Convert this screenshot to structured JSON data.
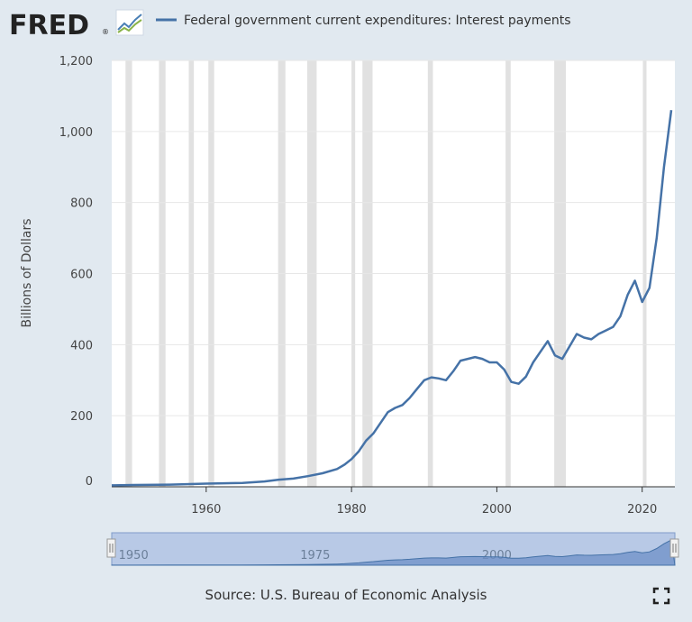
{
  "logo": {
    "text": "FRED",
    "registered": "®"
  },
  "source": "Source: U.S. Bureau of Economic Analysis",
  "icons": {
    "fullscreen": "fullscreen-icon",
    "logo_graph": "trend-graph-icon"
  },
  "colors": {
    "background": "#e1e9f0",
    "plot_bg": "#ffffff",
    "line": "#4572a7",
    "recession": "#e1e1e1",
    "navigator": "#b8c9e6",
    "navigator_fill": "#6d8fc7"
  },
  "chart_data": {
    "type": "line",
    "title": "",
    "xlabel": "",
    "ylabel": "Billions of Dollars",
    "legend_position": "top-left",
    "grid": true,
    "xlim": [
      1947,
      2024.5
    ],
    "ylim": [
      0,
      1200
    ],
    "x_ticks": [
      1960,
      1980,
      2000,
      2020
    ],
    "x_tick_labels": [
      "1960",
      "1980",
      "2000",
      "2020"
    ],
    "y_ticks": [
      0,
      200,
      400,
      600,
      800,
      1000,
      1200
    ],
    "y_tick_labels": [
      "0",
      "200",
      "400",
      "600",
      "800",
      "1,000",
      "1,200"
    ],
    "navigator_tick_labels": [
      "1950",
      "1975",
      "2000"
    ],
    "recessions": [
      [
        1948.9,
        1949.8
      ],
      [
        1953.5,
        1954.4
      ],
      [
        1957.6,
        1958.3
      ],
      [
        1960.3,
        1961.1
      ],
      [
        1969.9,
        1970.9
      ],
      [
        1973.9,
        1975.2
      ],
      [
        1980.0,
        1980.5
      ],
      [
        1981.5,
        1982.9
      ],
      [
        1990.5,
        1991.2
      ],
      [
        2001.2,
        2001.9
      ],
      [
        2007.9,
        2009.5
      ],
      [
        2020.1,
        2020.3
      ]
    ],
    "series": [
      {
        "name": "Federal government current expenditures: Interest payments",
        "x": [
          1947,
          1950,
          1955,
          1960,
          1965,
          1968,
          1970,
          1972,
          1974,
          1976,
          1978,
          1979,
          1980,
          1981,
          1982,
          1983,
          1984,
          1985,
          1986,
          1987,
          1988,
          1989,
          1990,
          1991,
          1992,
          1993,
          1994,
          1995,
          1996,
          1997,
          1998,
          1999,
          2000,
          2001,
          2002,
          2003,
          2004,
          2005,
          2006,
          2007,
          2008,
          2009,
          2010,
          2011,
          2012,
          2013,
          2014,
          2015,
          2016,
          2017,
          2018,
          2019,
          2020,
          2021,
          2022,
          2023,
          2024
        ],
        "y": [
          4,
          5,
          6,
          9,
          11,
          15,
          20,
          23,
          30,
          38,
          50,
          62,
          78,
          100,
          130,
          150,
          180,
          210,
          222,
          230,
          250,
          275,
          300,
          308,
          305,
          300,
          325,
          355,
          360,
          365,
          360,
          350,
          350,
          330,
          295,
          290,
          310,
          350,
          380,
          410,
          370,
          360,
          395,
          430,
          420,
          415,
          430,
          440,
          450,
          480,
          540,
          580,
          520,
          560,
          700,
          900,
          1060
        ]
      }
    ]
  }
}
